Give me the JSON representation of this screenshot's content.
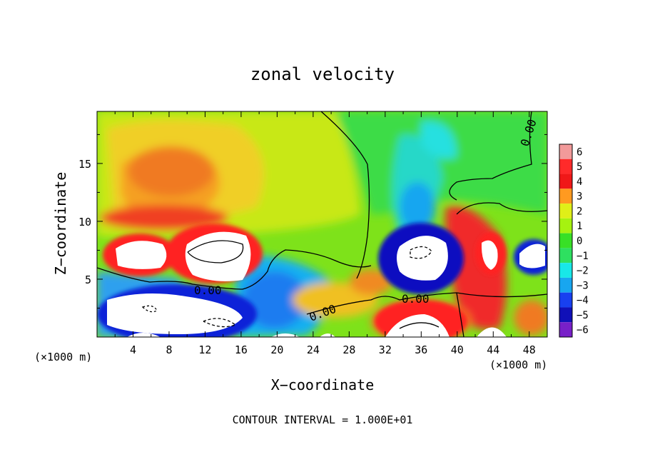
{
  "chart_data": {
    "type": "heatmap",
    "title": "zonal velocity",
    "xlabel": "X−coordinate",
    "ylabel": "Z−coordinate",
    "x_unit_label": "(×1000 m)",
    "z_unit_label": "(×1000 m)",
    "footer": "CONTOUR INTERVAL = 1.000E+01",
    "xlim": [
      0,
      50
    ],
    "ylim": [
      0,
      19.5
    ],
    "x_ticks": [
      4,
      8,
      12,
      16,
      20,
      24,
      28,
      32,
      36,
      40,
      44,
      48
    ],
    "y_ticks": [
      5,
      10,
      15
    ],
    "colorbar": {
      "levels": [
        6,
        5,
        4,
        3,
        2,
        1,
        0,
        -1,
        -2,
        -3,
        -4,
        -5,
        -6
      ],
      "colors": [
        "#f29a9a",
        "#ff2a2a",
        "#f01818",
        "#ff9a20",
        "#e0ef18",
        "#a6f210",
        "#38e026",
        "#2ee060",
        "#18e8e8",
        "#18a6f0",
        "#1840f0",
        "#1010b8",
        "#7820c8"
      ]
    },
    "contour_labels": [
      "0.00",
      "0.00",
      "0.00",
      "0.00"
    ],
    "value_range": [
      -6,
      6
    ]
  }
}
